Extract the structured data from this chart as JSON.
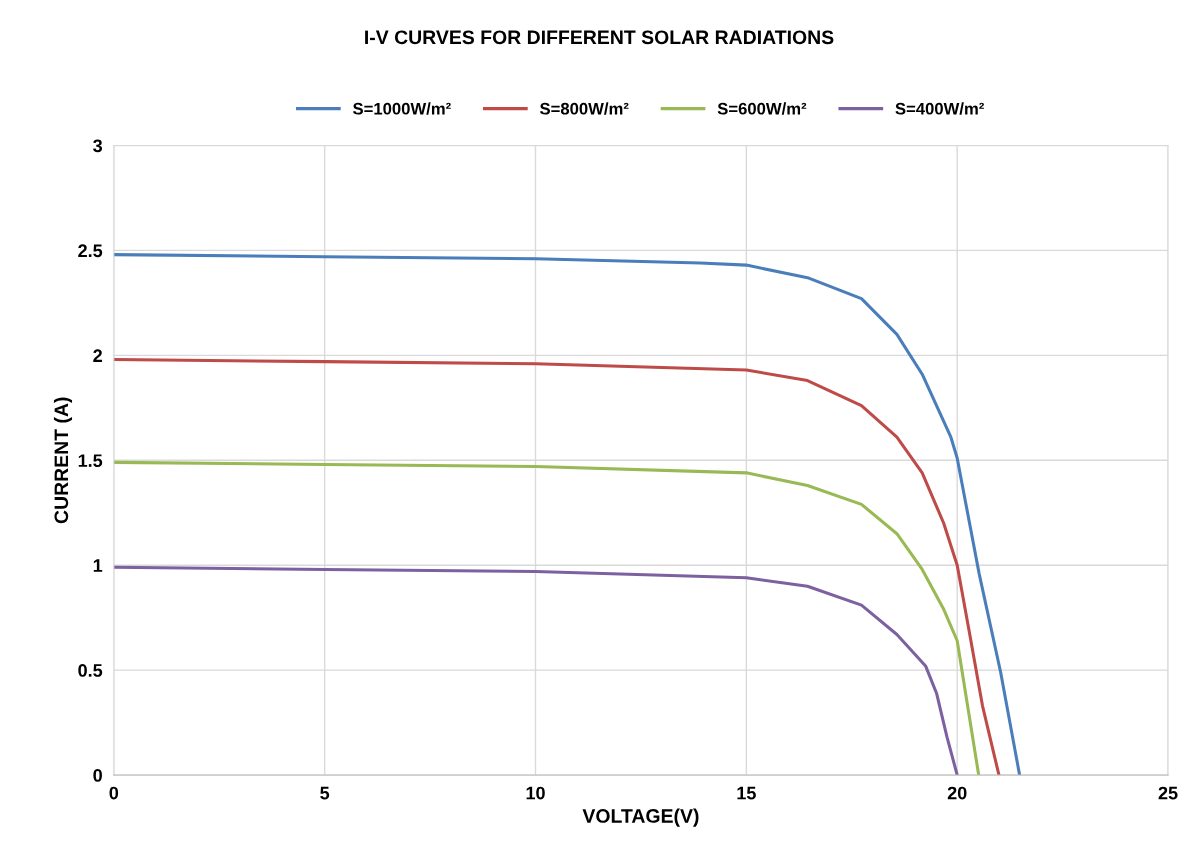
{
  "chart_data": {
    "type": "line",
    "title": "I-V CURVES FOR DIFFERENT SOLAR RADIATIONS",
    "xlabel": "VOLTAGE(V)",
    "ylabel": "CURRENT (A)",
    "xlim": [
      0,
      25
    ],
    "xticks": [
      0,
      5,
      10,
      15,
      20,
      25
    ],
    "ylim": [
      0,
      3
    ],
    "yticks": [
      0,
      0.5,
      1,
      1.5,
      2,
      2.5,
      3
    ],
    "grid": true,
    "legend": "top",
    "marker": "none",
    "line_style": "solid",
    "series": [
      {
        "name": "S=1000W/m²",
        "color": "#4a7ebb",
        "x": [
          0,
          5,
          10,
          13.91,
          15,
          16.45,
          17.73,
          18.57,
          19.17,
          19.85,
          20,
          20.52,
          21.03,
          21.48
        ],
        "values": [
          2.48,
          2.47,
          2.46,
          2.44,
          2.43,
          2.37,
          2.27,
          2.1,
          1.91,
          1.61,
          1.51,
          0.96,
          0.49,
          0
        ]
      },
      {
        "name": "S=800W/m²",
        "color": "#be4b48",
        "x": [
          0,
          5,
          10,
          15,
          16.45,
          17.73,
          18.57,
          19.17,
          19.68,
          20,
          20.28,
          20.6,
          20.99
        ],
        "values": [
          1.98,
          1.97,
          1.96,
          1.93,
          1.88,
          1.76,
          1.61,
          1.44,
          1.2,
          1.0,
          0.69,
          0.33,
          0
        ]
      },
      {
        "name": "S=600W/m²",
        "color": "#98b954",
        "x": [
          0,
          5,
          10,
          15,
          16.45,
          17.73,
          18.57,
          19.17,
          19.68,
          20,
          20.27,
          20.51
        ],
        "values": [
          1.49,
          1.48,
          1.47,
          1.44,
          1.38,
          1.29,
          1.15,
          0.98,
          0.79,
          0.64,
          0.3,
          0
        ]
      },
      {
        "name": "S=400W/m²",
        "color": "#7d60a0",
        "x": [
          0,
          5,
          10,
          15,
          16.45,
          17.73,
          18.57,
          19.25,
          19.51,
          19.76,
          20
        ],
        "values": [
          0.99,
          0.98,
          0.97,
          0.94,
          0.9,
          0.81,
          0.67,
          0.52,
          0.39,
          0.18,
          0
        ]
      }
    ]
  }
}
